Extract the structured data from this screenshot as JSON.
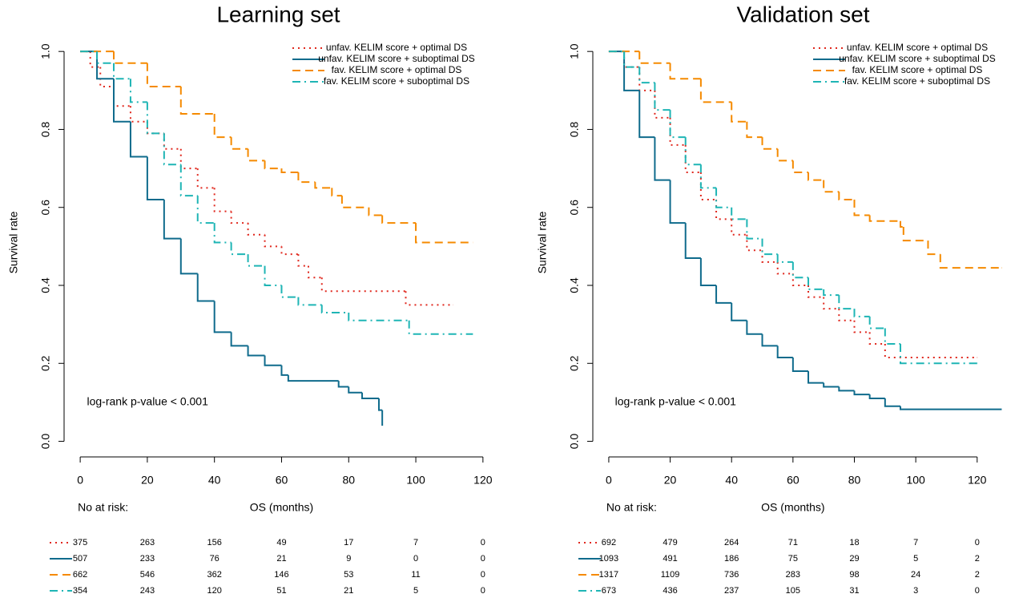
{
  "chart_data": [
    {
      "type": "line",
      "step": "post",
      "title": "Learning set",
      "x_label": "OS (months)",
      "y_label": "Survival rate",
      "annotation": "log-rank p-value < 0.001",
      "legend": "topright",
      "xlim": [
        -4.8,
        122.9
      ],
      "ylim": [
        -0.04,
        1.06
      ],
      "xticks": [
        0,
        20,
        40,
        60,
        80,
        100,
        120
      ],
      "yticks": [
        {
          "value": 0,
          "label": "0.0"
        },
        0.2,
        0.4,
        0.6,
        0.8,
        {
          "value": 1,
          "label": "1.0"
        }
      ],
      "series": [
        {
          "name": "unfav. KELIM score + optimal DS",
          "color": "#e0281e",
          "linestyle": "dotted",
          "x": [
            0,
            3,
            6,
            10,
            15,
            20,
            25,
            30,
            35,
            40,
            45,
            50,
            55,
            60,
            65,
            68,
            72,
            97,
            111
          ],
          "values": [
            1,
            0.96,
            0.91,
            0.86,
            0.82,
            0.79,
            0.75,
            0.7,
            0.65,
            0.59,
            0.56,
            0.53,
            0.5,
            0.48,
            0.45,
            0.42,
            0.385,
            0.35,
            0.35
          ]
        },
        {
          "name": "unfav. KELIM score + suboptimal DS",
          "color": "#0f6b8c",
          "linestyle": "solid",
          "x": [
            0,
            5,
            10,
            15,
            20,
            25,
            30,
            35,
            40,
            45,
            50,
            55,
            60,
            62,
            77,
            80,
            84,
            89,
            90
          ],
          "values": [
            1,
            0.93,
            0.82,
            0.73,
            0.62,
            0.52,
            0.43,
            0.36,
            0.28,
            0.245,
            0.22,
            0.195,
            0.17,
            0.155,
            0.14,
            0.125,
            0.11,
            0.08,
            0.04
          ]
        },
        {
          "name": "fav. KELIM score + optimal DS",
          "color": "#f58a00",
          "linestyle": "dashed",
          "x": [
            0,
            10,
            20,
            30,
            40,
            45,
            50,
            55,
            60,
            65,
            70,
            75,
            78,
            86,
            90,
            100,
            117
          ],
          "values": [
            1,
            0.97,
            0.91,
            0.84,
            0.78,
            0.75,
            0.72,
            0.7,
            0.69,
            0.665,
            0.65,
            0.63,
            0.6,
            0.58,
            0.56,
            0.51,
            0.51
          ]
        },
        {
          "name": "fav. KELIM score + suboptimal DS",
          "color": "#1fb5b5",
          "linestyle": "dashdot",
          "x": [
            0,
            5,
            10,
            15,
            20,
            25,
            30,
            35,
            40,
            45,
            50,
            55,
            60,
            65,
            72,
            80,
            98,
            117
          ],
          "values": [
            1,
            0.97,
            0.93,
            0.87,
            0.79,
            0.71,
            0.63,
            0.56,
            0.51,
            0.48,
            0.45,
            0.4,
            0.37,
            0.35,
            0.33,
            0.31,
            0.275,
            0.275
          ]
        }
      ],
      "risk_table": {
        "title": "No at risk:",
        "rows": [
          [
            375,
            263,
            156,
            49,
            17,
            7,
            0
          ],
          [
            507,
            233,
            76,
            21,
            9,
            0,
            0
          ],
          [
            662,
            546,
            362,
            146,
            53,
            11,
            0
          ],
          [
            354,
            243,
            120,
            51,
            21,
            5,
            0
          ]
        ]
      }
    },
    {
      "type": "line",
      "step": "post",
      "title": "Validation set",
      "x_label": "OS (months)",
      "y_label": "Survival rate",
      "annotation": "log-rank p-value < 0.001",
      "legend": "topright",
      "xlim": [
        -5.2,
        131.8
      ],
      "ylim": [
        -0.04,
        1.06
      ],
      "xticks": [
        0,
        20,
        40,
        60,
        80,
        100,
        120
      ],
      "yticks": [
        {
          "value": 0,
          "label": "0.0"
        },
        0.2,
        0.4,
        0.6,
        0.8,
        {
          "value": 1,
          "label": "1.0"
        }
      ],
      "series": [
        {
          "name": "unfav. KELIM score + optimal DS",
          "color": "#e0281e",
          "linestyle": "dotted",
          "x": [
            0,
            5,
            10,
            15,
            20,
            25,
            30,
            35,
            40,
            45,
            50,
            55,
            60,
            65,
            70,
            75,
            80,
            85,
            90,
            120
          ],
          "values": [
            1,
            0.96,
            0.9,
            0.83,
            0.76,
            0.69,
            0.62,
            0.57,
            0.53,
            0.49,
            0.46,
            0.43,
            0.4,
            0.37,
            0.34,
            0.31,
            0.28,
            0.25,
            0.215,
            0.215
          ]
        },
        {
          "name": "unfav. KELIM score + suboptimal DS",
          "color": "#0f6b8c",
          "linestyle": "solid",
          "x": [
            0,
            5,
            10,
            15,
            20,
            25,
            30,
            35,
            40,
            45,
            50,
            55,
            60,
            65,
            70,
            75,
            80,
            85,
            90,
            95,
            128
          ],
          "values": [
            1,
            0.9,
            0.78,
            0.67,
            0.56,
            0.47,
            0.4,
            0.355,
            0.31,
            0.275,
            0.245,
            0.215,
            0.18,
            0.15,
            0.14,
            0.13,
            0.12,
            0.11,
            0.09,
            0.082,
            0.082
          ]
        },
        {
          "name": "fav. KELIM score + optimal DS",
          "color": "#f58a00",
          "linestyle": "dashed",
          "x": [
            0,
            10,
            20,
            30,
            40,
            45,
            50,
            55,
            60,
            65,
            70,
            75,
            80,
            85,
            95,
            96,
            104,
            108,
            128
          ],
          "values": [
            1,
            0.97,
            0.93,
            0.87,
            0.82,
            0.78,
            0.75,
            0.72,
            0.69,
            0.67,
            0.64,
            0.62,
            0.58,
            0.565,
            0.55,
            0.515,
            0.48,
            0.445,
            0.445
          ]
        },
        {
          "name": "fav. KELIM score + suboptimal DS",
          "color": "#1fb5b5",
          "linestyle": "dashdot",
          "x": [
            0,
            5,
            10,
            15,
            20,
            25,
            30,
            35,
            40,
            45,
            50,
            55,
            60,
            65,
            70,
            75,
            80,
            85,
            90,
            95,
            120
          ],
          "values": [
            1,
            0.96,
            0.92,
            0.85,
            0.78,
            0.71,
            0.65,
            0.6,
            0.57,
            0.52,
            0.48,
            0.46,
            0.42,
            0.39,
            0.375,
            0.34,
            0.32,
            0.29,
            0.25,
            0.2,
            0.2
          ]
        }
      ],
      "risk_table": {
        "title": "No at risk:",
        "rows": [
          [
            692,
            479,
            264,
            71,
            18,
            7,
            0
          ],
          [
            1093,
            491,
            186,
            75,
            29,
            5,
            2
          ],
          [
            1317,
            1109,
            736,
            283,
            98,
            24,
            2
          ],
          [
            673,
            436,
            237,
            105,
            31,
            3,
            0
          ]
        ]
      }
    }
  ]
}
